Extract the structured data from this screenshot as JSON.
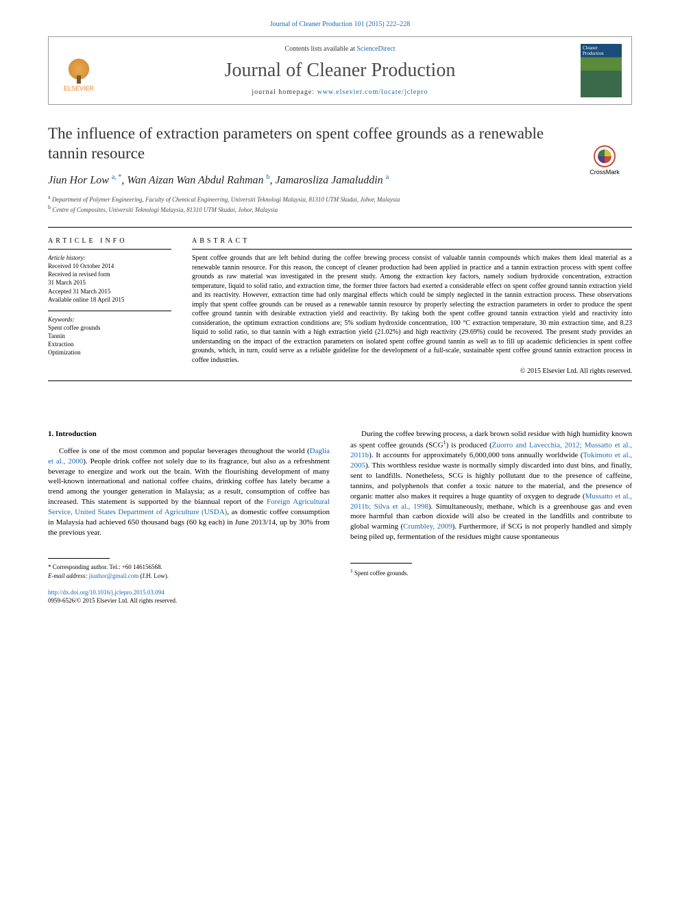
{
  "citation": "Journal of Cleaner Production 101 (2015) 222–228",
  "masthead": {
    "contents_prefix": "Contents lists available at ",
    "contents_link": "ScienceDirect",
    "journal_name": "Journal of Cleaner Production",
    "homepage_prefix": "journal homepage: ",
    "homepage_url": "www.elsevier.com/locate/jclepro",
    "elsevier": "ELSEVIER",
    "cover_line1": "Cleaner",
    "cover_line2": "Production"
  },
  "crossmark": "CrossMark",
  "title": "The influence of extraction parameters on spent coffee grounds as a renewable tannin resource",
  "authors_html": "Jiun Hor Low <sup>a, *</sup>, Wan Aizan Wan Abdul Rahman <sup>b</sup>, Jamarosliza Jamaluddin <sup>a</sup>",
  "affiliations": [
    {
      "sup": "a",
      "text": "Department of Polymer Engineering, Faculty of Chemical Engineering, Universiti Teknologi Malaysia, 81310 UTM Skudai, Johor, Malaysia"
    },
    {
      "sup": "b",
      "text": "Centre of Composites, Universiti Teknologi Malaysia, 81310 UTM Skudai, Johor, Malaysia"
    }
  ],
  "info": {
    "head": "ARTICLE INFO",
    "history_label": "Article history:",
    "history": [
      "Received 10 October 2014",
      "Received in revised form",
      "31 March 2015",
      "Accepted 31 March 2015",
      "Available online 18 April 2015"
    ],
    "keywords_label": "Keywords:",
    "keywords": [
      "Spent coffee grounds",
      "Tannin",
      "Extraction",
      "Optimization"
    ]
  },
  "abstract": {
    "head": "ABSTRACT",
    "text": "Spent coffee grounds that are left behind during the coffee brewing process consist of valuable tannin compounds which makes them ideal material as a renewable tannin resource. For this reason, the concept of cleaner production had been applied in practice and a tannin extraction process with spent coffee grounds as raw material was investigated in the present study. Among the extraction key factors, namely sodium hydroxide concentration, extraction temperature, liquid to solid ratio, and extraction time, the former three factors had exerted a considerable effect on spent coffee ground tannin extraction yield and its reactivity. However, extraction time had only marginal effects which could be simply neglected in the tannin extraction process. These observations imply that spent coffee grounds can be reused as a renewable tannin resource by properly selecting the extraction parameters in order to produce the spent coffee ground tannin with desirable extraction yield and reactivity. By taking both the spent coffee ground tannin extraction yield and reactivity into consideration, the optimum extraction conditions are; 5% sodium hydroxide concentration, 100 °C extraction temperature, 30 min extraction time, and 8.23 liquid to solid ratio, so that tannin with a high extraction yield (21.02%) and high reactivity (29.69%) could be recovered. The present study provides an understanding on the impact of the extraction parameters on isolated spent coffee ground tannin as well as to fill up academic deficiencies in spent coffee grounds, which, in turn, could serve as a reliable guideline for the development of a full-scale, sustainable spent coffee ground tannin extraction process in coffee industries.",
    "copyright": "© 2015 Elsevier Ltd. All rights reserved."
  },
  "intro": {
    "heading": "1. Introduction",
    "left": {
      "p1_a": "Coffee is one of the most common and popular beverages throughout the world (",
      "p1_link1": "Daglia et al., 2000",
      "p1_b": "). People drink coffee not solely due to its fragrance, but also as a refreshment beverage to energize and work out the brain. With the flourishing development of many well-known international and national coffee chains, drinking coffee has lately became a trend among the younger generation in Malaysia; as a result, consumption of coffee has increased. This statement is supported by the biannual report of the ",
      "p1_link2": "Foreign Agricultural Service, United States Department of Agriculture (USDA)",
      "p1_c": ", as domestic coffee consumption in Malaysia had achieved 650 thousand bags (60 kg each) in June 2013/14, up by 30% from the previous year."
    },
    "right": {
      "p1_a": "During the coffee brewing process, a dark brown solid residue with high humidity known as spent coffee grounds (SCG",
      "p1_sup": "1",
      "p1_b": ") is produced (",
      "p1_link1": "Zuorro and Lavecchia, 2012; Mussatto et al., 2011b",
      "p1_c": "). It accounts for approximately 6,000,000 tons annually worldwide (",
      "p1_link2": "Tokimoto et al., 2005",
      "p1_d": "). This worthless residue waste is normally simply discarded into dust bins, and finally, sent to landfills. Nonetheless, SCG is highly pollutant due to the presence of caffeine, tannins, and polyphenols that confer a toxic nature to the material, and the presence of organic matter also makes it requires a huge quantity of oxygen to degrade (",
      "p1_link3": "Mussatto et al., 2011b; Silva et al., 1998",
      "p1_e": "). Simultaneously, methane, which is a greenhouse gas and even more harmful than carbon dioxide will also be created in the landfills and contribute to global warming (",
      "p1_link4": "Crumbley, 2009",
      "p1_f": "). Furthermore, if SCG is not properly handled and simply being piled up, fermentation of the residues might cause spontaneous"
    }
  },
  "footnotes": {
    "left": {
      "corr_label": "* Corresponding author. Tel.: +60 146156568.",
      "email_label": "E-mail address: ",
      "email": "jiunhor@gmail.com",
      "email_suffix": " (J.H. Low)."
    },
    "right": {
      "fn1_sup": "1",
      "fn1": " Spent coffee grounds."
    }
  },
  "footer": {
    "doi": "http://dx.doi.org/10.1016/j.jclepro.2015.03.094",
    "issn_line": "0959-6526/© 2015 Elsevier Ltd. All rights reserved."
  },
  "colors": {
    "link": "#1566b0",
    "text": "#000000",
    "accent_orange": "#e8812a"
  }
}
